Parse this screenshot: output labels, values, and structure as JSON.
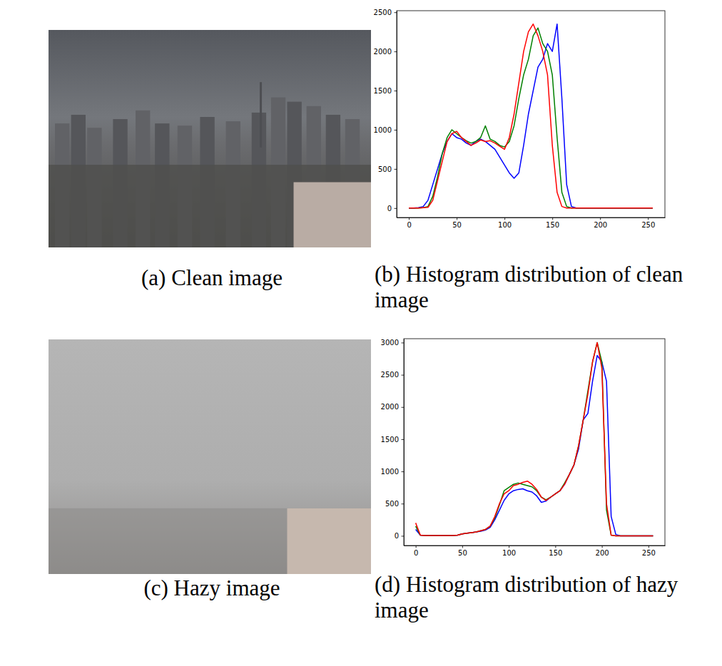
{
  "chart_data": [
    {
      "type": "line",
      "title": "(b) Histogram distribution of clean image",
      "x": [
        0,
        5,
        10,
        15,
        20,
        25,
        30,
        35,
        40,
        45,
        50,
        55,
        60,
        65,
        70,
        75,
        80,
        85,
        90,
        95,
        100,
        105,
        110,
        115,
        120,
        125,
        130,
        135,
        140,
        145,
        150,
        155,
        160,
        165,
        170,
        175,
        180,
        185,
        190,
        195,
        200,
        205,
        210,
        215,
        220,
        225,
        230,
        235,
        240,
        245,
        250,
        255
      ],
      "xlim": [
        -12.75,
        267.75
      ],
      "xticks": [
        0,
        50,
        100,
        150,
        200,
        250
      ],
      "ylim": [
        -120,
        2520
      ],
      "yticks": [
        0,
        500,
        1000,
        1500,
        2000,
        2500
      ],
      "grid": false,
      "series": [
        {
          "color": "#0000ff",
          "values": [
            0,
            0,
            5,
            20,
            100,
            300,
            500,
            700,
            850,
            950,
            900,
            880,
            830,
            800,
            850,
            880,
            850,
            800,
            750,
            650,
            550,
            450,
            380,
            450,
            800,
            1200,
            1500,
            1800,
            1900,
            2100,
            2000,
            2350,
            1400,
            300,
            20,
            0,
            0,
            0,
            0,
            0,
            0,
            0,
            0,
            0,
            0,
            0,
            0,
            0,
            0,
            0,
            0,
            0
          ]
        },
        {
          "color": "#008000",
          "values": [
            0,
            0,
            0,
            5,
            20,
            150,
            400,
            700,
            900,
            1000,
            950,
            900,
            860,
            830,
            850,
            900,
            1050,
            880,
            850,
            800,
            780,
            850,
            1050,
            1400,
            1700,
            1900,
            2200,
            2300,
            2100,
            2000,
            1700,
            900,
            200,
            20,
            0,
            0,
            0,
            0,
            0,
            0,
            0,
            0,
            0,
            0,
            0,
            0,
            0,
            0,
            0,
            0,
            0,
            0
          ]
        },
        {
          "color": "#ff0000",
          "values": [
            0,
            0,
            0,
            5,
            10,
            100,
            350,
            600,
            850,
            950,
            980,
            900,
            850,
            800,
            830,
            870,
            850,
            860,
            830,
            790,
            750,
            900,
            1200,
            1600,
            2000,
            2250,
            2350,
            2200,
            2000,
            1700,
            800,
            200,
            20,
            0,
            0,
            0,
            0,
            0,
            0,
            0,
            0,
            0,
            0,
            0,
            0,
            0,
            0,
            0,
            0,
            0,
            0,
            0
          ]
        }
      ]
    },
    {
      "type": "line",
      "title": "(d) Histogram distribution of hazy image",
      "x": [
        0,
        5,
        10,
        15,
        20,
        25,
        30,
        35,
        40,
        45,
        50,
        55,
        60,
        65,
        70,
        75,
        80,
        85,
        90,
        95,
        100,
        105,
        110,
        115,
        120,
        125,
        130,
        135,
        140,
        145,
        150,
        155,
        160,
        165,
        170,
        175,
        180,
        185,
        190,
        195,
        200,
        205,
        210,
        215,
        220,
        225,
        230,
        235,
        240,
        245,
        250,
        255
      ],
      "xlim": [
        -12.75,
        267.75
      ],
      "xticks": [
        0,
        50,
        100,
        150,
        200,
        250
      ],
      "ylim": [
        -150,
        3060
      ],
      "yticks": [
        0,
        500,
        1000,
        1500,
        2000,
        2500,
        3000
      ],
      "grid": false,
      "series": [
        {
          "color": "#0000ff",
          "values": [
            100,
            10,
            5,
            5,
            5,
            5,
            5,
            5,
            5,
            10,
            30,
            40,
            50,
            60,
            70,
            90,
            130,
            250,
            400,
            550,
            650,
            700,
            720,
            730,
            700,
            680,
            620,
            520,
            540,
            600,
            650,
            700,
            800,
            950,
            1100,
            1350,
            1800,
            1900,
            2400,
            2800,
            2700,
            2400,
            300,
            20,
            0,
            0,
            0,
            0,
            0,
            0,
            0,
            0
          ]
        },
        {
          "color": "#008000",
          "values": [
            150,
            10,
            5,
            5,
            5,
            5,
            5,
            5,
            5,
            10,
            30,
            40,
            50,
            60,
            80,
            100,
            150,
            280,
            480,
            700,
            750,
            800,
            820,
            800,
            780,
            760,
            700,
            600,
            560,
            600,
            650,
            700,
            820,
            950,
            1100,
            1400,
            1800,
            2250,
            2700,
            3000,
            2700,
            400,
            10,
            0,
            0,
            0,
            0,
            0,
            0,
            0,
            0,
            0
          ]
        },
        {
          "color": "#ff0000",
          "values": [
            200,
            10,
            5,
            5,
            5,
            5,
            5,
            5,
            5,
            10,
            30,
            40,
            50,
            60,
            80,
            100,
            150,
            300,
            500,
            650,
            700,
            780,
            800,
            830,
            850,
            800,
            720,
            600,
            550,
            600,
            650,
            700,
            800,
            950,
            1100,
            1400,
            1800,
            2200,
            2700,
            3000,
            2600,
            500,
            10,
            0,
            0,
            0,
            0,
            0,
            0,
            0,
            0,
            0
          ]
        }
      ]
    }
  ],
  "images": [
    {
      "caption": "(a) Clean image"
    },
    {
      "caption": "(c) Hazy image"
    }
  ]
}
